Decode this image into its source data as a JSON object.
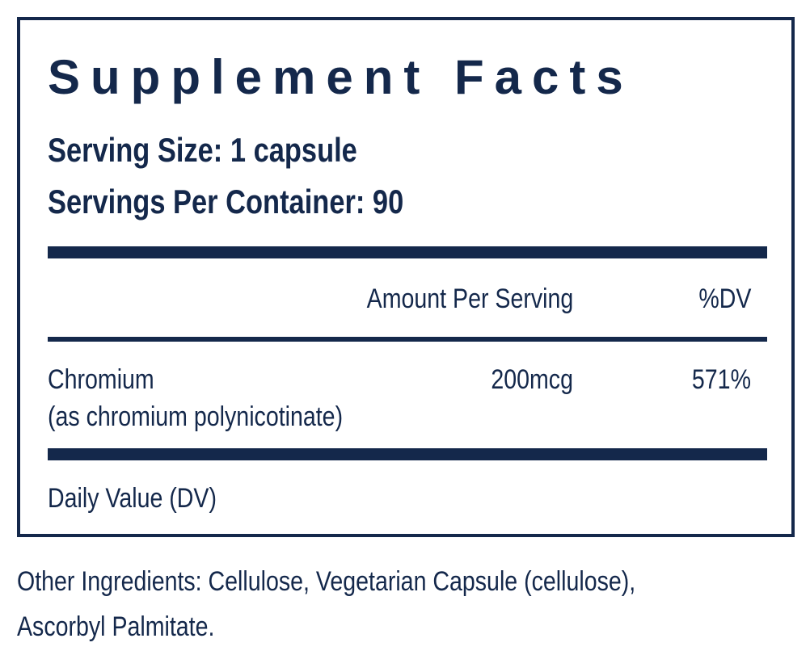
{
  "facts": {
    "title": "Supplement Facts",
    "serving_size": "Serving Size: 1 capsule",
    "servings_per_container": "Servings Per Container: 90",
    "column_headers": {
      "amount": "Amount Per Serving",
      "dv": "%DV"
    },
    "rows": [
      {
        "name": "Chromium",
        "source": "(as chromium polynicotinate)",
        "amount": "200mcg",
        "dv": "571%"
      }
    ],
    "footnote": "Daily Value (DV)"
  },
  "other_ingredients": {
    "line1": "Other Ingredients: Cellulose, Vegetarian Capsule (cellulose),",
    "line2": "Ascorbyl Palmitate."
  },
  "colors": {
    "ink": "#14284b",
    "background": "#ffffff"
  }
}
